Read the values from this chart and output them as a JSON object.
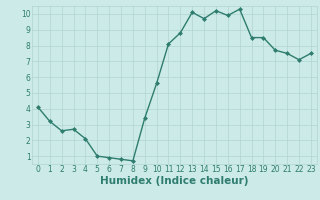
{
  "x": [
    0,
    1,
    2,
    3,
    4,
    5,
    6,
    7,
    8,
    9,
    10,
    11,
    12,
    13,
    14,
    15,
    16,
    17,
    18,
    19,
    20,
    21,
    22,
    23
  ],
  "y": [
    4.1,
    3.2,
    2.6,
    2.7,
    2.1,
    1.0,
    0.9,
    0.8,
    0.7,
    3.4,
    5.6,
    8.1,
    8.8,
    10.1,
    9.7,
    10.2,
    9.9,
    10.3,
    8.5,
    8.5,
    7.7,
    7.5,
    7.1,
    7.5
  ],
  "xlabel": "Humidex (Indice chaleur)",
  "line_color": "#2e7d6e",
  "bg_color": "#cceae8",
  "grid_color": "#b0d4d2",
  "tick_color": "#2e7d6e",
  "xlim": [
    -0.5,
    23.5
  ],
  "ylim": [
    0.5,
    10.5
  ],
  "yticks": [
    1,
    2,
    3,
    4,
    5,
    6,
    7,
    8,
    9,
    10
  ],
  "xticks": [
    0,
    1,
    2,
    3,
    4,
    5,
    6,
    7,
    8,
    9,
    10,
    11,
    12,
    13,
    14,
    15,
    16,
    17,
    18,
    19,
    20,
    21,
    22,
    23
  ],
  "marker": "D",
  "marker_size": 2.0,
  "line_width": 1.0,
  "xlabel_fontsize": 7.5,
  "tick_fontsize": 5.5,
  "xlabel_fontweight": "bold"
}
